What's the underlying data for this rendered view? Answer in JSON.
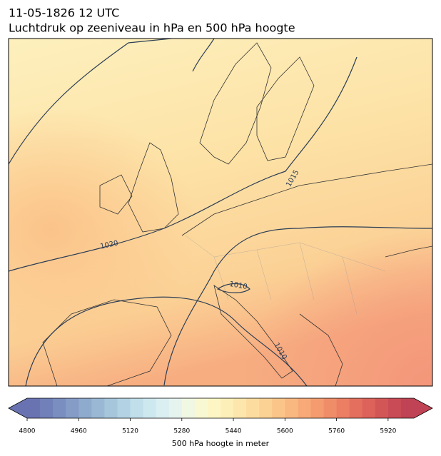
{
  "header": {
    "date": "11-05-1826 12 UTC",
    "title": "Luchtdruk op zeeniveau in hPa en 500 hPa hoogte"
  },
  "map": {
    "contour_labels": [
      "1020",
      "1015",
      "1010",
      "1010"
    ]
  },
  "colorbar": {
    "lim": [
      4800,
      6000
    ],
    "ticks": [
      4800,
      4960,
      5120,
      5280,
      5440,
      5600,
      5760,
      5920
    ],
    "label": "500 hPa hoogte in meter",
    "colors": [
      "#6a73b2",
      "#7180b8",
      "#7a8ebf",
      "#849cc6",
      "#8eaacd",
      "#9ab8d4",
      "#a6c6dc",
      "#b3d3e4",
      "#c0dfea",
      "#cde8ef",
      "#daeff2",
      "#e6f4ef",
      "#f0f7e2",
      "#f8f8d2",
      "#fdf6c4",
      "#fdefb8",
      "#fde6ab",
      "#fddc9f",
      "#fcd194",
      "#fbc589",
      "#f9b880",
      "#f7aa78",
      "#f49c70",
      "#f08d69",
      "#eb7e63",
      "#e46f5e",
      "#dc625a",
      "#d35656",
      "#c94b55",
      "#bf4354"
    ]
  }
}
